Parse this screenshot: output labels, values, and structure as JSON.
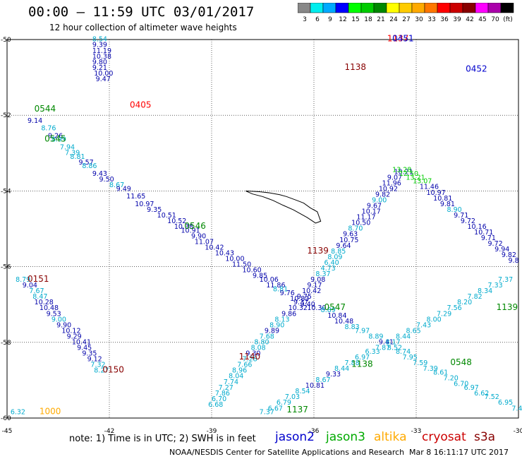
{
  "title": "00:00 – 11:59 UTC 03/01/2017",
  "subtitle": "12 hour collection of altimeter wave heights",
  "colorbar": {
    "colors": [
      "#888888",
      "#00eeee",
      "#00aaff",
      "#0000ff",
      "#00ff00",
      "#00cc00",
      "#008800",
      "#ffff00",
      "#ffcc00",
      "#ffaa00",
      "#ff7700",
      "#ff0000",
      "#cc0000",
      "#880000",
      "#ff00ff",
      "#aa00aa",
      "#000000"
    ],
    "labels": [
      "3",
      "6",
      "9",
      "12",
      "15",
      "18",
      "21",
      "24",
      "27",
      "30",
      "33",
      "36",
      "39",
      "42",
      "45",
      "70",
      "(ft)"
    ]
  },
  "axes": {
    "lon_ticks": [
      "-45",
      "-42",
      "-39",
      "-36",
      "-33",
      "-30"
    ],
    "lat_ticks": [
      "-50",
      "-52",
      "-54",
      "-56",
      "-58",
      "-60"
    ]
  },
  "tracks": [
    {
      "points": [
        [
          -44.4,
          -52.2,
          "9.14",
          "#0000aa"
        ],
        [
          -44.0,
          -52.4,
          "8.76",
          "#00aacc"
        ],
        [
          -43.8,
          -52.6,
          "9.26",
          "#0000aa"
        ],
        [
          -43.7,
          -52.7,
          "8.99",
          "#00aacc"
        ],
        [
          -43.45,
          -52.9,
          "7.94",
          "#00aacc"
        ],
        [
          -43.3,
          -53.05,
          "7.39",
          "#00aacc"
        ],
        [
          -43.15,
          -53.15,
          "8.81",
          "#00aacc"
        ],
        [
          -42.9,
          -53.3,
          "9.57",
          "#0000aa"
        ],
        [
          -42.8,
          -53.4,
          "8.86",
          "#00aacc"
        ],
        [
          -42.5,
          -53.6,
          "9.43",
          "#0000aa"
        ],
        [
          -42.3,
          -53.75,
          "9.50",
          "#0000aa"
        ],
        [
          -42.0,
          -53.9,
          "8.67",
          "#00aacc"
        ],
        [
          -41.8,
          -54.0,
          "9.49",
          "#0000aa"
        ],
        [
          -41.5,
          -54.2,
          "11.65",
          "#0000aa"
        ],
        [
          -41.25,
          -54.4,
          "10.97",
          "#0000aa"
        ],
        [
          -40.9,
          -54.55,
          "9.35",
          "#0000aa"
        ],
        [
          -40.6,
          -54.7,
          "10.51",
          "#0000aa"
        ],
        [
          -40.3,
          -54.85,
          "10.52",
          "#0000aa"
        ],
        [
          -40.1,
          -55.0,
          "10.38",
          "#0000aa"
        ],
        [
          -39.9,
          -55.1,
          "10.91",
          "#0000aa"
        ],
        [
          -39.6,
          -55.25,
          "9.90",
          "#0000aa"
        ],
        [
          -39.5,
          -55.4,
          "11.07",
          "#0000aa"
        ],
        [
          -39.2,
          -55.55,
          "10.42",
          "#0000aa"
        ],
        [
          -38.9,
          -55.7,
          "10.43",
          "#0000aa"
        ],
        [
          -38.6,
          -55.85,
          "10.00",
          "#0000aa"
        ],
        [
          -38.4,
          -56.0,
          "11.50",
          "#0000aa"
        ],
        [
          -38.1,
          -56.15,
          "10.60",
          "#0000aa"
        ],
        [
          -37.8,
          -56.3,
          "9.85",
          "#0000aa"
        ],
        [
          -37.6,
          -56.4,
          "10.06",
          "#0000aa"
        ],
        [
          -37.4,
          -56.55,
          "11.86",
          "#0000aa"
        ],
        [
          -37.2,
          -56.65,
          "8.81",
          "#00aacc"
        ],
        [
          -37.0,
          -56.75,
          "9.76",
          "#0000aa"
        ],
        [
          -36.7,
          -56.9,
          "10.83",
          "#0000aa"
        ],
        [
          -36.4,
          -57.05,
          "9.40",
          "#0000aa"
        ],
        [
          -36.2,
          -57.15,
          "10.30",
          "#0000aa"
        ],
        [
          -35.8,
          -57.2,
          "8.89",
          "#00aacc"
        ],
        [
          -35.6,
          -57.35,
          "10.84",
          "#0000aa"
        ],
        [
          -35.4,
          -57.5,
          "10.48",
          "#0000aa"
        ],
        [
          -35.1,
          -57.65,
          "8.83",
          "#00aacc"
        ],
        [
          -34.8,
          -57.75,
          "7.97",
          "#00aacc"
        ],
        [
          -34.4,
          -57.9,
          "8.89",
          "#00aacc"
        ],
        [
          -34.1,
          -58.05,
          "9.41",
          "#0000aa"
        ],
        [
          -33.85,
          -58.2,
          "8.52",
          "#00aacc"
        ],
        [
          -33.6,
          -58.3,
          "8.74",
          "#00aacc"
        ],
        [
          -33.4,
          -58.45,
          "7.95",
          "#00aacc"
        ],
        [
          -33.1,
          -58.6,
          "7.59",
          "#00aacc"
        ],
        [
          -32.8,
          -58.75,
          "7.39",
          "#00aacc"
        ],
        [
          -32.5,
          -58.85,
          "8.61",
          "#00aacc"
        ],
        [
          -32.2,
          -59.0,
          "7.20",
          "#00aacc"
        ],
        [
          -31.9,
          -59.15,
          "6.70",
          "#00aacc"
        ],
        [
          -31.6,
          -59.25,
          "6.97",
          "#00aacc"
        ],
        [
          -31.3,
          -59.4,
          "6.62",
          "#00aacc"
        ],
        [
          -31.0,
          -59.5,
          "7.52",
          "#00aacc"
        ],
        [
          -30.6,
          -59.65,
          "6.95",
          "#00aacc"
        ],
        [
          -30.2,
          -59.8,
          "7.42",
          "#00aacc"
        ]
      ]
    },
    {
      "points": [
        [
          -42.5,
          -50.05,
          "8.54",
          "#00aacc"
        ],
        [
          -42.5,
          -50.2,
          "9.39",
          "#0000aa"
        ],
        [
          -42.5,
          -50.35,
          "11.19",
          "#0000aa"
        ],
        [
          -42.5,
          -50.5,
          "10.38",
          "#0000aa"
        ],
        [
          -42.5,
          -50.65,
          "9.80",
          "#0000aa"
        ],
        [
          -42.5,
          -50.8,
          "9.21",
          "#0000aa"
        ],
        [
          -42.45,
          -50.95,
          "10.00",
          "#0000aa"
        ],
        [
          -42.4,
          -51.1,
          "9.47",
          "#0000aa"
        ]
      ]
    },
    {
      "points": [
        [
          -44.75,
          -56.4,
          "8.79",
          "#00aacc"
        ],
        [
          -44.55,
          -56.55,
          "9.04",
          "#0000aa"
        ],
        [
          -44.35,
          -56.7,
          "7.67",
          "#00aacc"
        ],
        [
          -44.25,
          -56.85,
          "8.47",
          "#00aacc"
        ],
        [
          -44.2,
          -57.0,
          "10.28",
          "#0000aa"
        ],
        [
          -44.05,
          -57.15,
          "10.48",
          "#0000aa"
        ],
        [
          -43.85,
          -57.3,
          "9.53",
          "#0000aa"
        ],
        [
          -43.7,
          -57.45,
          "9.00",
          "#00aacc"
        ],
        [
          -43.55,
          -57.6,
          "9.90",
          "#0000aa"
        ],
        [
          -43.4,
          -57.75,
          "10.12",
          "#0000aa"
        ],
        [
          -43.25,
          -57.9,
          "9.29",
          "#0000aa"
        ],
        [
          -43.1,
          -58.05,
          "10.41",
          "#0000aa"
        ],
        [
          -42.95,
          -58.2,
          "9.45",
          "#0000aa"
        ],
        [
          -42.8,
          -58.35,
          "9.35",
          "#0000aa"
        ],
        [
          -42.65,
          -58.5,
          "9.12",
          "#0000aa"
        ],
        [
          -42.55,
          -58.65,
          "7.32",
          "#00aacc"
        ],
        [
          -42.45,
          -58.8,
          "8.27",
          "#00aacc"
        ],
        [
          -44.9,
          -59.9,
          "6.32",
          "#00aacc"
        ]
      ]
    },
    {
      "points": [
        [
          -39.1,
          -59.7,
          "6.68",
          "#00aacc"
        ],
        [
          -39.0,
          -59.55,
          "6.70",
          "#00aacc"
        ],
        [
          -38.9,
          -59.4,
          "7.86",
          "#00aacc"
        ],
        [
          -38.8,
          -59.25,
          "7.27",
          "#00aacc"
        ],
        [
          -38.65,
          -59.1,
          "7.74",
          "#00aacc"
        ],
        [
          -38.5,
          -58.95,
          "8.04",
          "#00aacc"
        ],
        [
          -38.4,
          -58.8,
          "8.96",
          "#00aacc"
        ],
        [
          -38.25,
          -58.65,
          "7.66",
          "#00aacc"
        ],
        [
          -38.1,
          -58.5,
          "7.28",
          "#00aacc"
        ],
        [
          -38.0,
          -58.35,
          "9.30",
          "#0000aa"
        ],
        [
          -37.85,
          -58.2,
          "8.08",
          "#00aacc"
        ],
        [
          -37.75,
          -58.05,
          "8.80",
          "#00aacc"
        ],
        [
          -37.6,
          -57.9,
          "7.68",
          "#00aacc"
        ],
        [
          -37.45,
          -57.75,
          "9.89",
          "#0000aa"
        ],
        [
          -37.3,
          -57.6,
          "8.90",
          "#00aacc"
        ],
        [
          -37.15,
          -57.45,
          "8.13",
          "#00aacc"
        ],
        [
          -36.95,
          -57.3,
          "9.86",
          "#0000aa"
        ],
        [
          -36.75,
          -57.15,
          "10.32",
          "#0000aa"
        ],
        [
          -36.6,
          -57.0,
          "9.37",
          "#0000aa"
        ],
        [
          -36.5,
          -56.85,
          "9.75",
          "#0000aa"
        ],
        [
          -36.35,
          -56.7,
          "10.42",
          "#0000aa"
        ],
        [
          -36.2,
          -56.55,
          "9.17",
          "#0000aa"
        ],
        [
          -36.1,
          -56.4,
          "9.08",
          "#0000aa"
        ],
        [
          -35.95,
          -56.25,
          "8.37",
          "#00aacc"
        ],
        [
          -35.8,
          -56.1,
          "4.73",
          "#00aacc"
        ],
        [
          -35.7,
          -55.95,
          "6.40",
          "#00aacc"
        ],
        [
          -35.6,
          -55.8,
          "8.09",
          "#00aacc"
        ],
        [
          -35.5,
          -55.65,
          "8.85",
          "#00aacc"
        ],
        [
          -35.35,
          -55.5,
          "9.64",
          "#0000aa"
        ],
        [
          -35.25,
          -55.35,
          "10.75",
          "#0000aa"
        ],
        [
          -35.15,
          -55.2,
          "9.63",
          "#0000aa"
        ],
        [
          -35.0,
          -55.05,
          "8.70",
          "#00aacc"
        ],
        [
          -34.9,
          -54.9,
          "10.50",
          "#0000aa"
        ],
        [
          -34.75,
          -54.75,
          "11.17",
          "#0000aa"
        ],
        [
          -34.6,
          -54.6,
          "10.17",
          "#0000aa"
        ],
        [
          -34.45,
          -54.45,
          "9.67",
          "#0000aa"
        ],
        [
          -34.3,
          -54.3,
          "9.00",
          "#00aacc"
        ],
        [
          -34.2,
          -54.15,
          "9.82",
          "#0000aa"
        ],
        [
          -34.1,
          -54.0,
          "10.92",
          "#0000aa"
        ],
        [
          -34.0,
          -53.85,
          "11.96",
          "#0000aa"
        ],
        [
          -33.85,
          -53.7,
          "9.07",
          "#0000aa"
        ],
        [
          -33.65,
          -53.55,
          "10.21",
          "#0000aa"
        ]
      ]
    },
    {
      "points": [
        [
          -33.7,
          -53.5,
          "13.28",
          "#00cc00"
        ],
        [
          -33.5,
          -53.6,
          "12.50",
          "#00cc00"
        ],
        [
          -33.3,
          -53.7,
          "13.21",
          "#00cc00"
        ],
        [
          -33.1,
          -53.8,
          "13.07",
          "#00cc00"
        ],
        [
          -32.9,
          -53.95,
          "11.46",
          "#0000aa"
        ],
        [
          -32.7,
          -54.1,
          "10.97",
          "#0000aa"
        ],
        [
          -32.5,
          -54.25,
          "10.81",
          "#0000aa"
        ],
        [
          -32.3,
          -54.4,
          "9.81",
          "#0000aa"
        ],
        [
          -32.1,
          -54.55,
          "8.90",
          "#00aacc"
        ],
        [
          -31.9,
          -54.7,
          "9.71",
          "#0000aa"
        ],
        [
          -31.7,
          -54.85,
          "9.72",
          "#0000aa"
        ],
        [
          -31.5,
          -55.0,
          "10.16",
          "#0000aa"
        ],
        [
          -31.3,
          -55.15,
          "10.71",
          "#0000aa"
        ],
        [
          -31.1,
          -55.3,
          "9.71",
          "#0000aa"
        ],
        [
          -30.9,
          -55.45,
          "9.72",
          "#0000aa"
        ],
        [
          -30.7,
          -55.6,
          "9.94",
          "#0000aa"
        ],
        [
          -30.5,
          -55.75,
          "9.82",
          "#0000aa"
        ],
        [
          -30.3,
          -55.9,
          "9.8",
          "#0000aa"
        ]
      ]
    },
    {
      "points": [
        [
          -37.6,
          -59.9,
          "7.37",
          "#00aacc"
        ],
        [
          -37.35,
          -59.8,
          "6.67",
          "#00aacc"
        ],
        [
          -37.1,
          -59.65,
          "6.79",
          "#00aacc"
        ],
        [
          -36.85,
          -59.5,
          "7.03",
          "#00aacc"
        ],
        [
          -36.55,
          -59.35,
          "8.54",
          "#00aacc"
        ],
        [
          -36.25,
          -59.2,
          "10.81",
          "#0000aa"
        ],
        [
          -35.95,
          -59.05,
          "8.67",
          "#00aacc"
        ],
        [
          -35.65,
          -58.9,
          "9.33",
          "#0000aa"
        ],
        [
          -35.4,
          -58.75,
          "8.44",
          "#00aacc"
        ],
        [
          -35.1,
          -58.6,
          "7.88",
          "#00aacc"
        ],
        [
          -34.8,
          -58.45,
          "6.97",
          "#00aacc"
        ],
        [
          -34.5,
          -58.3,
          "6.33",
          "#00aacc"
        ],
        [
          -34.2,
          -58.2,
          "7.87",
          "#00aacc"
        ],
        [
          -33.9,
          -58.05,
          "8.17",
          "#00aacc"
        ],
        [
          -33.6,
          -57.9,
          "8.44",
          "#00aacc"
        ],
        [
          -33.3,
          -57.75,
          "8.65",
          "#00aacc"
        ],
        [
          -33.0,
          -57.6,
          "7.43",
          "#00aacc"
        ],
        [
          -32.7,
          -57.45,
          "8.00",
          "#00aacc"
        ],
        [
          -32.4,
          -57.3,
          "7.29",
          "#00aacc"
        ],
        [
          -32.1,
          -57.15,
          "7.56",
          "#00aacc"
        ],
        [
          -31.8,
          -57.0,
          "8.20",
          "#00aacc"
        ],
        [
          -31.5,
          -56.85,
          "7.82",
          "#00aacc"
        ],
        [
          -31.2,
          -56.7,
          "8.34",
          "#00aacc"
        ],
        [
          -30.9,
          -56.55,
          "7.33",
          "#00aacc"
        ],
        [
          -30.6,
          -56.4,
          "7.37",
          "#00aacc"
        ]
      ]
    }
  ],
  "time_labels": [
    {
      "lon": -44.2,
      "lat": -51.9,
      "text": "0544",
      "color": "#008800"
    },
    {
      "lon": -43.9,
      "lat": -52.7,
      "text": "0545",
      "color": "#008800"
    },
    {
      "lon": -41.4,
      "lat": -51.8,
      "text": "0405",
      "color": "#ff0000"
    },
    {
      "lon": -39.8,
      "lat": -55.0,
      "text": "0546",
      "color": "#008800"
    },
    {
      "lon": -44.4,
      "lat": -56.4,
      "text": "0151",
      "color": "#880000"
    },
    {
      "lon": -42.2,
      "lat": -58.8,
      "text": "0150",
      "color": "#880000"
    },
    {
      "lon": -44.05,
      "lat": -59.9,
      "text": "1000",
      "color": "#ffaa00"
    },
    {
      "lon": -38.2,
      "lat": -58.45,
      "text": "1140",
      "color": "#880000"
    },
    {
      "lon": -35.7,
      "lat": -57.15,
      "text": "0547",
      "color": "#008800"
    },
    {
      "lon": -36.2,
      "lat": -55.65,
      "text": "1139",
      "color": "#880000"
    },
    {
      "lon": -35.1,
      "lat": -50.8,
      "text": "1138",
      "color": "#880000"
    },
    {
      "lon": -33.85,
      "lat": -50.05,
      "text": "1137",
      "color": "#ff0000"
    },
    {
      "lon": -33.7,
      "lat": -50.05,
      "text": "0451",
      "color": "#0000cc"
    },
    {
      "lon": -31.55,
      "lat": -50.85,
      "text": "0452",
      "color": "#0000cc"
    },
    {
      "lon": -34.9,
      "lat": -58.65,
      "text": "1138",
      "color": "#008800"
    },
    {
      "lon": -36.8,
      "lat": -59.85,
      "text": "1137",
      "color": "#008800"
    },
    {
      "lon": -32.0,
      "lat": -58.6,
      "text": "0548",
      "color": "#008800"
    },
    {
      "lon": -30.65,
      "lat": -57.15,
      "text": "1139",
      "color": "#008800"
    }
  ],
  "footer": {
    "note": "note: 1) Time is in UTC; 2) SWH is in feet",
    "credit": "NOAA/NESDIS Center for Satellite Applications and Research",
    "timestamp": "Mar 8 16:11:17 UTC 2017",
    "satellites": [
      {
        "name": "jason2",
        "color": "#0000cc"
      },
      {
        "name": "jason3",
        "color": "#00aa00"
      },
      {
        "name": "altika",
        "color": "#ffaa00"
      },
      {
        "name": "cryosat",
        "color": "#cc0000"
      },
      {
        "name": "s3a",
        "color": "#880000"
      }
    ]
  }
}
